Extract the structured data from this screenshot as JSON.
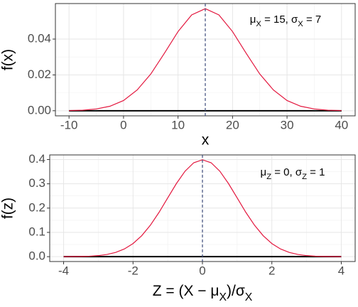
{
  "chart_data": [
    {
      "type": "line",
      "x_label": "x",
      "y_label": "f(x)",
      "annotation": [
        {
          "text": "μ"
        },
        {
          "text": "X",
          "sub": true
        },
        {
          "text": " = 15, "
        },
        {
          "text": "σ"
        },
        {
          "text": "X",
          "sub": true
        },
        {
          "text": " = 7"
        }
      ],
      "x": [
        -10,
        -7.5,
        -5,
        -2.5,
        0,
        2.5,
        5,
        7.5,
        10,
        12.5,
        15,
        17.5,
        20,
        22.5,
        25,
        27.5,
        30,
        32.5,
        35,
        37.5,
        40
      ],
      "series": [
        {
          "color": "#e3173e",
          "values": [
            0.0001,
            0.0003,
            0.001,
            0.0025,
            0.0057,
            0.0116,
            0.0205,
            0.0321,
            0.0442,
            0.0535,
            0.057,
            0.0535,
            0.0442,
            0.0321,
            0.0205,
            0.0116,
            0.0057,
            0.0025,
            0.001,
            0.0003,
            0.0001
          ]
        }
      ],
      "hline": 0,
      "vline": 15,
      "xlim": [
        -12.5,
        42.5
      ],
      "ylim": [
        -0.00285,
        0.05984
      ],
      "xticks": [
        -10,
        0,
        10,
        20,
        30,
        40
      ],
      "yticks": [
        {
          "value": 0,
          "label": "0.00"
        },
        {
          "value": 0.02,
          "label": "0.02"
        },
        {
          "value": 0.04,
          "label": "0.04"
        }
      ],
      "grid": true
    },
    {
      "type": "line",
      "y_label": "f(z)",
      "x_label": [
        {
          "text": "Z = (X − μ"
        },
        {
          "text": "X",
          "sub": true
        },
        {
          "text": ")/σ"
        },
        {
          "text": "X",
          "sub": true
        }
      ],
      "annotation": [
        {
          "text": "μ"
        },
        {
          "text": "Z",
          "sub": true
        },
        {
          "text": " = 0, "
        },
        {
          "text": "σ"
        },
        {
          "text": "Z",
          "sub": true
        },
        {
          "text": " = 1"
        }
      ],
      "x": [
        -4,
        -3.75,
        -3.5,
        -3.25,
        -3,
        -2.75,
        -2.5,
        -2.25,
        -2,
        -1.75,
        -1.5,
        -1.25,
        -1,
        -0.75,
        -0.5,
        -0.25,
        0,
        0.25,
        0.5,
        0.75,
        1,
        1.25,
        1.5,
        1.75,
        2,
        2.25,
        2.5,
        2.75,
        3,
        3.25,
        3.5,
        3.75,
        4
      ],
      "series": [
        {
          "color": "#e3173e",
          "values": [
            0.0001,
            0.0004,
            0.0009,
            0.002,
            0.0044,
            0.0091,
            0.0175,
            0.0317,
            0.054,
            0.0863,
            0.1295,
            0.1826,
            0.242,
            0.3011,
            0.3521,
            0.3867,
            0.3989,
            0.3867,
            0.3521,
            0.3011,
            0.242,
            0.1826,
            0.1295,
            0.0863,
            0.054,
            0.0317,
            0.0175,
            0.0091,
            0.0044,
            0.002,
            0.0009,
            0.0004,
            0.0001
          ]
        }
      ],
      "hline": 0,
      "vline": 0,
      "xlim": [
        -4.4,
        4.4
      ],
      "ylim": [
        -0.02,
        0.4189
      ],
      "xticks": [
        -4,
        -2,
        0,
        2,
        4
      ],
      "yticks": [
        {
          "value": 0,
          "label": "0.0"
        },
        0.1,
        0.2,
        0.3,
        0.4
      ],
      "grid": true
    }
  ]
}
